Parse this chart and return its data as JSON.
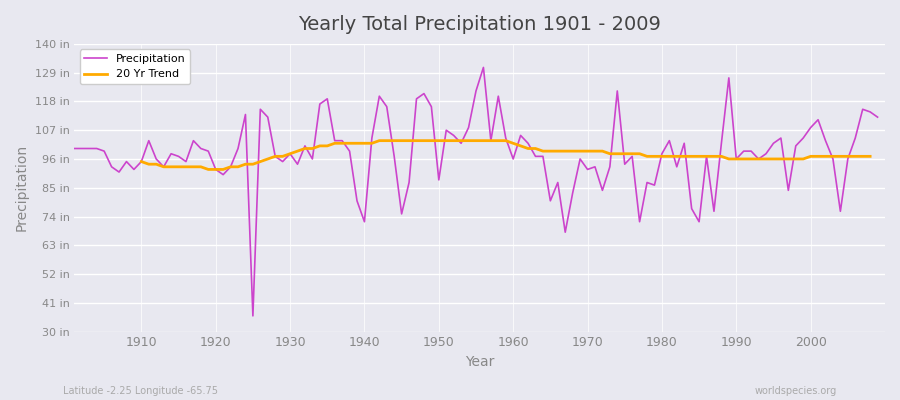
{
  "title": "Yearly Total Precipitation 1901 - 2009",
  "xlabel": "Year",
  "ylabel": "Precipitation",
  "subtitle_left": "Latitude -2.25 Longitude -65.75",
  "subtitle_right": "worldspecies.org",
  "ylim": [
    30,
    140
  ],
  "yticks": [
    30,
    41,
    52,
    63,
    74,
    85,
    96,
    107,
    118,
    129,
    140
  ],
  "ytick_labels": [
    "30 in",
    "41 in",
    "52 in",
    "63 in",
    "74 in",
    "85 in",
    "96 in",
    "107 in",
    "118 in",
    "129 in",
    "140 in"
  ],
  "xticks": [
    1910,
    1920,
    1930,
    1940,
    1950,
    1960,
    1970,
    1980,
    1990,
    2000
  ],
  "background_color": "#e8e8f0",
  "plot_bg_color": "#e8e8f0",
  "grid_color": "#ffffff",
  "precip_color": "#cc44cc",
  "trend_color": "#ffaa00",
  "legend_label_precip": "Precipitation",
  "legend_label_trend": "20 Yr Trend",
  "years": [
    1901,
    1902,
    1903,
    1904,
    1905,
    1906,
    1907,
    1908,
    1909,
    1910,
    1911,
    1912,
    1913,
    1914,
    1915,
    1916,
    1917,
    1918,
    1919,
    1920,
    1921,
    1922,
    1923,
    1924,
    1925,
    1926,
    1927,
    1928,
    1929,
    1930,
    1931,
    1932,
    1933,
    1934,
    1935,
    1936,
    1937,
    1938,
    1939,
    1940,
    1941,
    1942,
    1943,
    1944,
    1945,
    1946,
    1947,
    1948,
    1949,
    1950,
    1951,
    1952,
    1953,
    1954,
    1955,
    1956,
    1957,
    1958,
    1959,
    1960,
    1961,
    1962,
    1963,
    1964,
    1965,
    1966,
    1967,
    1968,
    1969,
    1970,
    1971,
    1972,
    1973,
    1974,
    1975,
    1976,
    1977,
    1978,
    1979,
    1980,
    1981,
    1982,
    1983,
    1984,
    1985,
    1986,
    1987,
    1988,
    1989,
    1990,
    1991,
    1992,
    1993,
    1994,
    1995,
    1996,
    1997,
    1998,
    1999,
    2000,
    2001,
    2002,
    2003,
    2004,
    2005,
    2006,
    2007,
    2008,
    2009
  ],
  "precipitation": [
    100,
    100,
    100,
    100,
    99,
    93,
    91,
    95,
    92,
    95,
    103,
    96,
    93,
    98,
    97,
    95,
    103,
    100,
    99,
    92,
    90,
    93,
    100,
    113,
    36,
    115,
    112,
    97,
    95,
    98,
    94,
    101,
    96,
    117,
    119,
    103,
    103,
    99,
    80,
    72,
    104,
    120,
    116,
    97,
    75,
    87,
    119,
    121,
    116,
    88,
    107,
    105,
    102,
    108,
    122,
    131,
    103,
    120,
    104,
    96,
    105,
    102,
    97,
    97,
    80,
    87,
    68,
    83,
    96,
    92,
    93,
    84,
    93,
    122,
    94,
    97,
    72,
    87,
    86,
    98,
    103,
    93,
    102,
    77,
    72,
    97,
    76,
    102,
    127,
    96,
    99,
    99,
    96,
    98,
    102,
    104,
    84,
    101,
    104,
    108,
    111,
    103,
    96,
    76,
    96,
    104,
    115,
    114,
    112
  ],
  "trend": [
    null,
    null,
    null,
    null,
    null,
    null,
    null,
    null,
    null,
    95,
    94,
    94,
    93,
    93,
    93,
    93,
    93,
    93,
    92,
    92,
    92,
    93,
    93,
    94,
    94,
    95,
    96,
    97,
    97,
    98,
    99,
    100,
    100,
    101,
    101,
    102,
    102,
    102,
    102,
    102,
    102,
    103,
    103,
    103,
    103,
    103,
    103,
    103,
    103,
    103,
    103,
    103,
    103,
    103,
    103,
    103,
    103,
    103,
    103,
    102,
    101,
    100,
    100,
    99,
    99,
    99,
    99,
    99,
    99,
    99,
    99,
    99,
    98,
    98,
    98,
    98,
    98,
    97,
    97,
    97,
    97,
    97,
    97,
    97,
    97,
    97,
    97,
    97,
    96,
    96,
    96,
    96,
    96,
    96,
    96,
    96,
    96,
    96,
    96,
    97,
    97,
    97,
    97,
    97,
    97,
    97,
    97,
    97,
    null
  ]
}
